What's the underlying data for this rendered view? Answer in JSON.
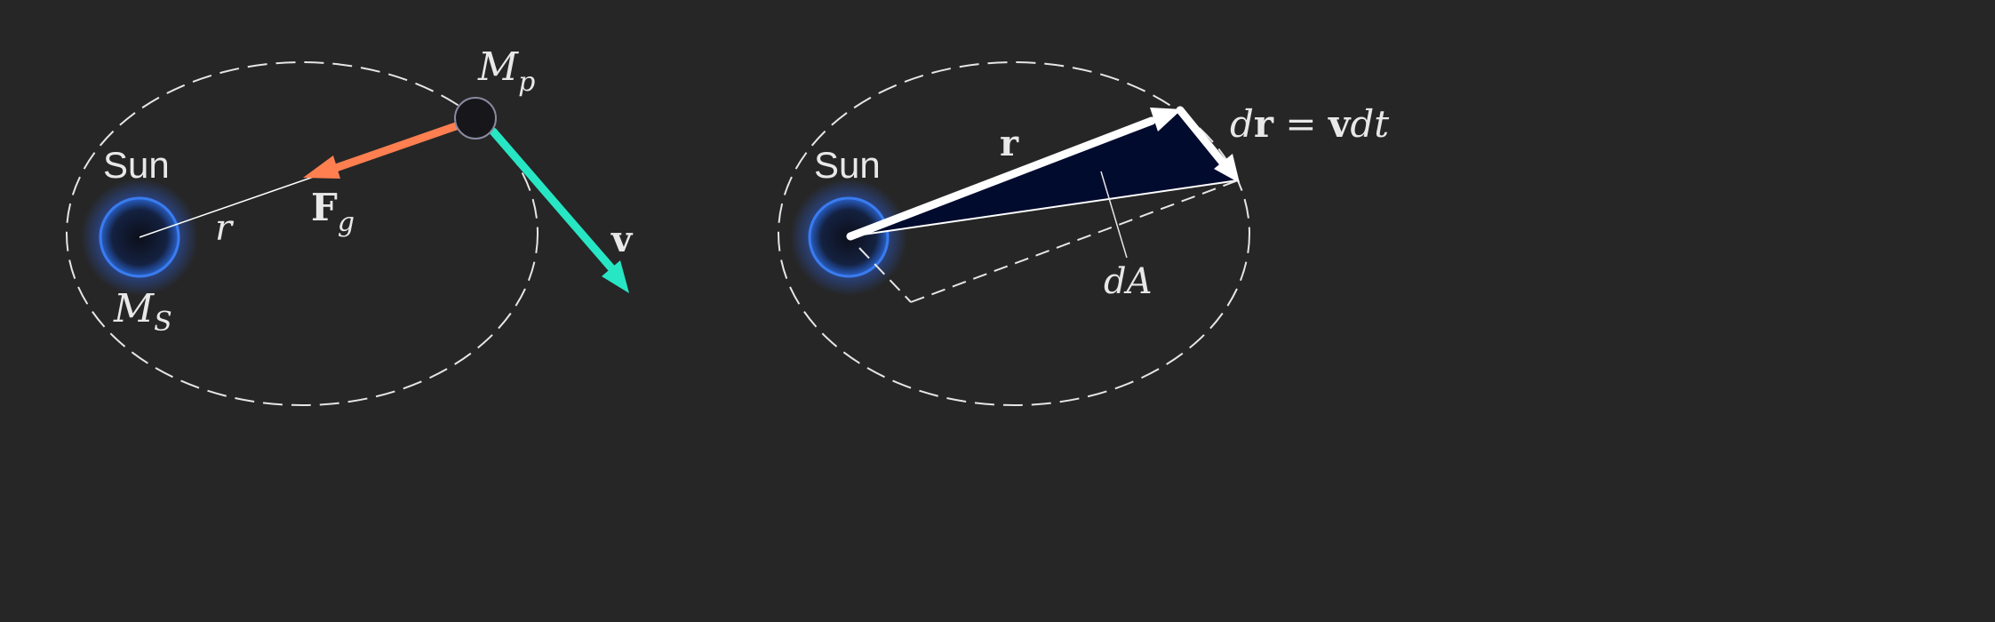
{
  "colors": {
    "background": "#262626",
    "orbit": "#e6e6e6",
    "sun_core": "#0e1220",
    "sun_rim": "#2e73e6",
    "sun_glow": "#2f6cff",
    "planet_fill": "#16161b",
    "planet_stroke": "#8a8aa0",
    "force_arrow": "#ff7f50",
    "velocity_arrow": "#27e6c4",
    "area_fill": "#010b2e",
    "vector": "#ffffff"
  },
  "left": {
    "sun_label": "Sun",
    "sun_mass": {
      "base": "M",
      "sub": "S"
    },
    "planet_mass": {
      "base": "M",
      "sub": "p"
    },
    "radius_label": "r",
    "force_label": {
      "base": "F",
      "sub": "g"
    },
    "velocity_label": "v"
  },
  "right": {
    "sun_label": "Sun",
    "position_label": "r",
    "dr_label": {
      "d1": "d",
      "r": "r",
      "eq": " = ",
      "v": "v",
      "d2": "dt"
    },
    "area_label": "dA"
  }
}
